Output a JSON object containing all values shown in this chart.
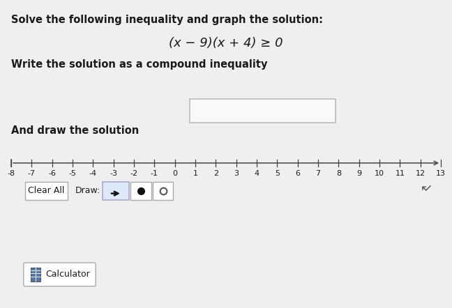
{
  "bg_color": "#efefef",
  "title_text": "Solve the following inequality and graph the solution:",
  "equation_text": "(x − 9)(x + 4) ≥ 0",
  "write_text": "Write the solution as a compound inequality",
  "draw_text": "And draw the solution",
  "number_line_min": -8,
  "number_line_max": 13,
  "clear_all_text": "Clear All",
  "draw_label": "Draw:",
  "calculator_text": "Calculator",
  "font_color": "#1a1a1a",
  "title_fontsize": 10.5,
  "eq_fontsize": 13,
  "body_fontsize": 10.5,
  "nl_label_fontsize": 8
}
